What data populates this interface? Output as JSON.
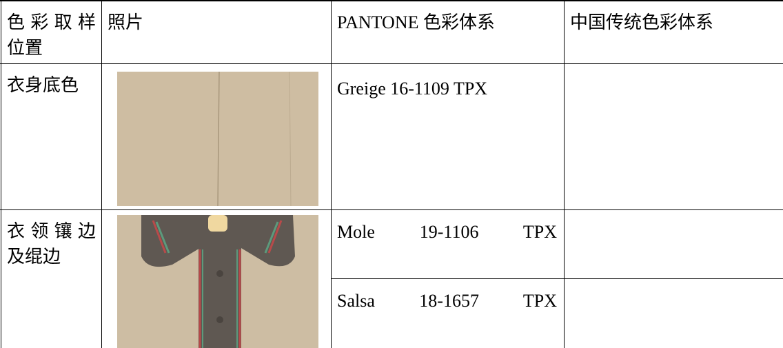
{
  "table": {
    "header": [
      "色彩取样位置",
      "照片",
      "PANTONE 色彩体系",
      "中国传统色彩体系"
    ],
    "rows": [
      {
        "location": "衣身底色",
        "pantone": [
          "Greige 16-1109 TPX"
        ]
      },
      {
        "location": "衣领镶边及绲边",
        "pantone": [
          "Mole 19-1106 TPX",
          "Salsa 18-1657 TPX"
        ]
      }
    ]
  }
}
